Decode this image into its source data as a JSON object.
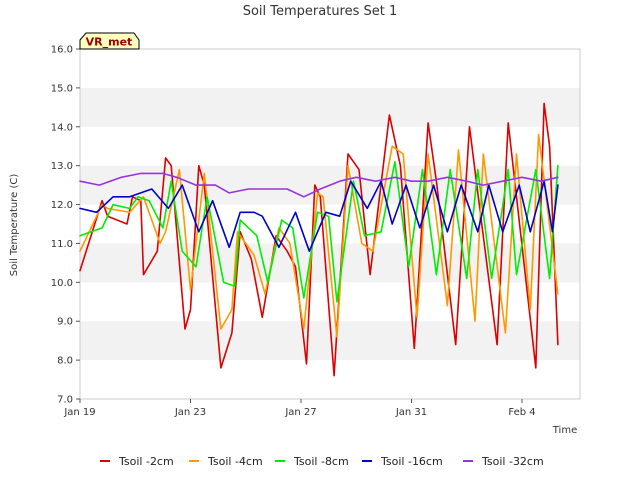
{
  "chart_data": {
    "type": "line",
    "title": "Soil Temperatures Set 1",
    "xlabel": "Time",
    "ylabel": "Soil Temperature (C)",
    "badge": "VR_met",
    "x_ticks": [
      "Jan 19",
      "Jan 23",
      "Jan 27",
      "Jan 31",
      "Feb 4"
    ],
    "x_tick_days": [
      0,
      4,
      8,
      12,
      16
    ],
    "xlim_days": [
      0,
      18.1
    ],
    "ylim": [
      7.0,
      16.0
    ],
    "y_ticks": [
      "7.0",
      "8.0",
      "9.0",
      "10.0",
      "11.0",
      "12.0",
      "13.0",
      "14.0",
      "15.0",
      "16.0"
    ],
    "grid": "horizontal alternating bands",
    "legend_position": "bottom",
    "series": [
      {
        "name": "Tsoil -2cm",
        "color": "#dd0000",
        "x": [
          0,
          0.8,
          1.0,
          1.7,
          1.9,
          2.2,
          2.3,
          2.8,
          3.1,
          3.3,
          3.8,
          4.0,
          4.3,
          4.5,
          5.1,
          5.5,
          5.8,
          6.2,
          6.6,
          7.1,
          7.5,
          7.8,
          8.2,
          8.5,
          8.7,
          9.2,
          9.7,
          10.1,
          10.5,
          11.2,
          11.6,
          12.1,
          12.6,
          12.9,
          13.6,
          14.1,
          14.4,
          15.1,
          15.5,
          15.8,
          16.5,
          16.8,
          17.0,
          17.3
        ],
        "y": [
          10.3,
          12.1,
          11.7,
          11.5,
          12.2,
          12.1,
          10.2,
          10.8,
          13.2,
          13.0,
          8.8,
          9.3,
          13.0,
          12.5,
          7.8,
          8.7,
          11.3,
          10.6,
          9.1,
          11.2,
          10.8,
          10.4,
          7.9,
          12.5,
          12.2,
          7.6,
          13.3,
          12.9,
          10.2,
          14.3,
          13.0,
          8.3,
          14.1,
          12.6,
          8.4,
          14.0,
          12.3,
          8.4,
          14.1,
          12.2,
          7.8,
          14.6,
          13.5,
          8.4
        ]
      },
      {
        "name": "Tsoil -4cm",
        "color": "#ff9900",
        "x": [
          0,
          0.8,
          1.0,
          1.8,
          2.3,
          2.9,
          3.1,
          3.6,
          4.0,
          4.5,
          5.1,
          5.5,
          5.7,
          6.3,
          6.7,
          7.2,
          7.6,
          8.1,
          8.6,
          8.8,
          9.3,
          9.7,
          10.2,
          10.6,
          11.3,
          11.7,
          12.2,
          12.6,
          13.3,
          13.7,
          14.3,
          14.6,
          15.4,
          15.8,
          16.3,
          16.6,
          17.3
        ],
        "y": [
          10.8,
          12.0,
          11.9,
          11.8,
          12.2,
          11.0,
          11.3,
          12.9,
          9.8,
          12.8,
          8.8,
          9.3,
          11.3,
          10.7,
          9.7,
          11.4,
          11.0,
          8.8,
          12.3,
          12.2,
          8.6,
          13.0,
          11.0,
          10.8,
          13.5,
          13.3,
          9.1,
          13.3,
          9.4,
          13.4,
          9.0,
          13.3,
          8.7,
          13.3,
          9.3,
          13.8,
          9.7
        ]
      },
      {
        "name": "Tsoil -8cm",
        "color": "#00ee00",
        "x": [
          0,
          0.8,
          1.2,
          1.8,
          2.1,
          2.5,
          3.0,
          3.3,
          3.7,
          4.2,
          4.6,
          5.2,
          5.6,
          5.8,
          6.4,
          6.8,
          7.3,
          7.7,
          8.1,
          8.6,
          9.0,
          9.3,
          9.9,
          10.3,
          10.9,
          11.4,
          11.9,
          12.4,
          12.9,
          13.4,
          14.0,
          14.4,
          14.9,
          15.5,
          15.8,
          16.5,
          17.0,
          17.3
        ],
        "y": [
          11.2,
          11.4,
          12.0,
          11.9,
          12.2,
          12.1,
          11.4,
          12.6,
          10.8,
          10.4,
          12.2,
          10.0,
          9.9,
          11.6,
          11.2,
          10.0,
          11.6,
          11.4,
          9.6,
          11.8,
          11.7,
          9.5,
          12.6,
          11.2,
          11.3,
          13.1,
          10.4,
          12.9,
          10.2,
          12.9,
          10.1,
          12.9,
          10.1,
          12.9,
          10.2,
          12.9,
          10.1,
          13.0
        ]
      },
      {
        "name": "Tsoil -16cm",
        "color": "#0000cc",
        "x": [
          0,
          0.6,
          1.2,
          1.8,
          2.2,
          2.6,
          3.2,
          3.7,
          4.3,
          4.8,
          5.4,
          5.8,
          6.3,
          6.6,
          7.2,
          7.8,
          8.3,
          8.9,
          9.4,
          9.8,
          10.4,
          10.9,
          11.3,
          11.8,
          12.3,
          12.8,
          13.3,
          13.8,
          14.4,
          14.8,
          15.3,
          15.9,
          16.3,
          16.8,
          17.1,
          17.3
        ],
        "y": [
          11.9,
          11.8,
          12.2,
          12.2,
          12.3,
          12.4,
          11.9,
          12.5,
          11.3,
          12.1,
          10.9,
          11.8,
          11.8,
          11.7,
          10.9,
          11.8,
          10.8,
          11.8,
          11.7,
          12.6,
          11.9,
          12.6,
          11.5,
          12.5,
          11.4,
          12.5,
          11.3,
          12.5,
          11.3,
          12.5,
          11.3,
          12.5,
          11.3,
          12.6,
          11.3,
          12.5
        ]
      },
      {
        "name": "Tsoil -32cm",
        "color": "#9933dd",
        "x": [
          0,
          0.7,
          1.5,
          2.2,
          3.0,
          3.5,
          4.2,
          4.9,
          5.4,
          6.1,
          6.8,
          7.5,
          8.1,
          8.7,
          9.4,
          10.0,
          10.7,
          11.4,
          12.0,
          12.6,
          13.3,
          14.0,
          14.6,
          15.3,
          16.0,
          16.7,
          17.3
        ],
        "y": [
          12.6,
          12.5,
          12.7,
          12.8,
          12.8,
          12.7,
          12.5,
          12.5,
          12.3,
          12.4,
          12.4,
          12.4,
          12.2,
          12.4,
          12.6,
          12.7,
          12.6,
          12.7,
          12.6,
          12.6,
          12.7,
          12.6,
          12.5,
          12.6,
          12.7,
          12.6,
          12.7
        ]
      }
    ]
  }
}
